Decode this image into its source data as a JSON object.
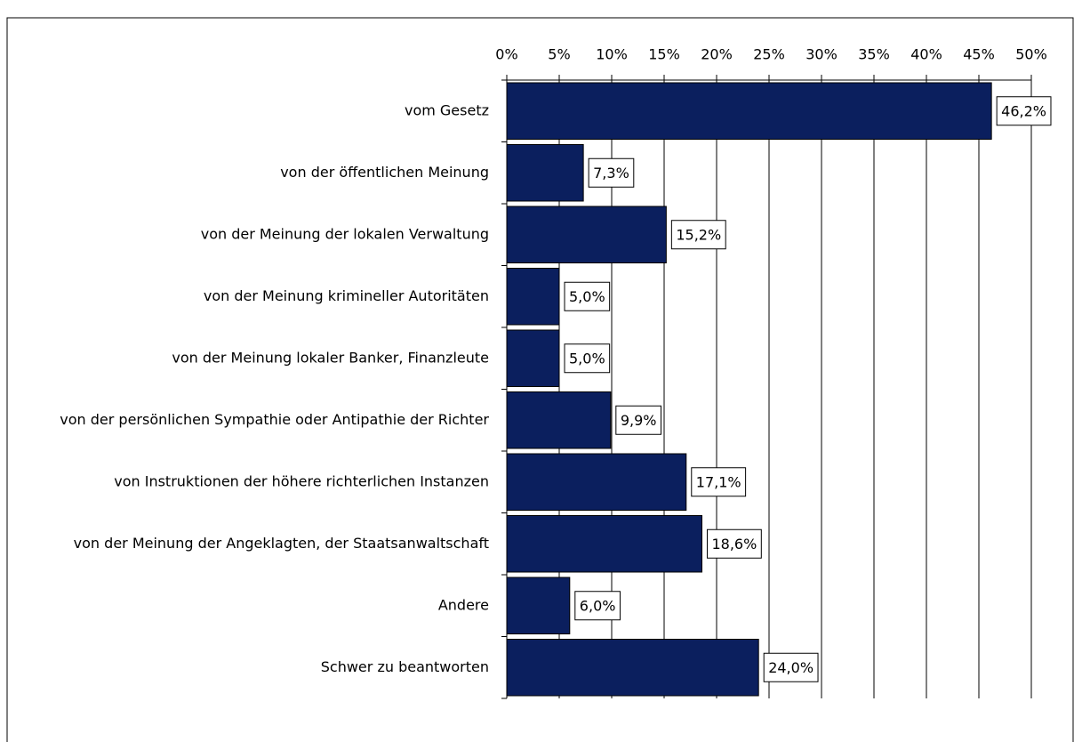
{
  "chart_data": {
    "type": "bar",
    "orientation": "horizontal",
    "categories": [
      "vom Gesetz",
      "von der öffentlichen Meinung",
      "von der Meinung der lokalen Verwaltung",
      "von der Meinung krimineller Autoritäten",
      "von der Meinung lokaler Banker, Finanzleute",
      "von der persönlichen Sympathie oder Antipathie der Richter",
      "von Instruktionen der höhere richterlichen Instanzen",
      "von der Meinung der Angeklagten, der Staatsanwaltschaft",
      "Andere",
      "Schwer zu beantworten"
    ],
    "values": [
      46.2,
      7.3,
      15.2,
      5.0,
      5.0,
      9.9,
      17.1,
      18.6,
      6.0,
      24.0
    ],
    "value_labels": [
      "46,2%",
      "7,3%",
      "15,2%",
      "5,0%",
      "5,0%",
      "9,9%",
      "17,1%",
      "18,6%",
      "6,0%",
      "24,0%"
    ],
    "color": "#0b1f5e",
    "xlim": [
      0,
      50
    ],
    "xticks": [
      {
        "value": 0,
        "label": "0%"
      },
      {
        "value": 5,
        "label": "5%"
      },
      {
        "value": 10,
        "label": "10%"
      },
      {
        "value": 15,
        "label": "15%"
      },
      {
        "value": 20,
        "label": "20%"
      },
      {
        "value": 25,
        "label": "25%"
      },
      {
        "value": 30,
        "label": "30%"
      },
      {
        "value": 35,
        "label": "35%"
      },
      {
        "value": 40,
        "label": "40%"
      },
      {
        "value": 45,
        "label": "45%"
      },
      {
        "value": 50,
        "label": "50%"
      }
    ],
    "grid": true
  }
}
